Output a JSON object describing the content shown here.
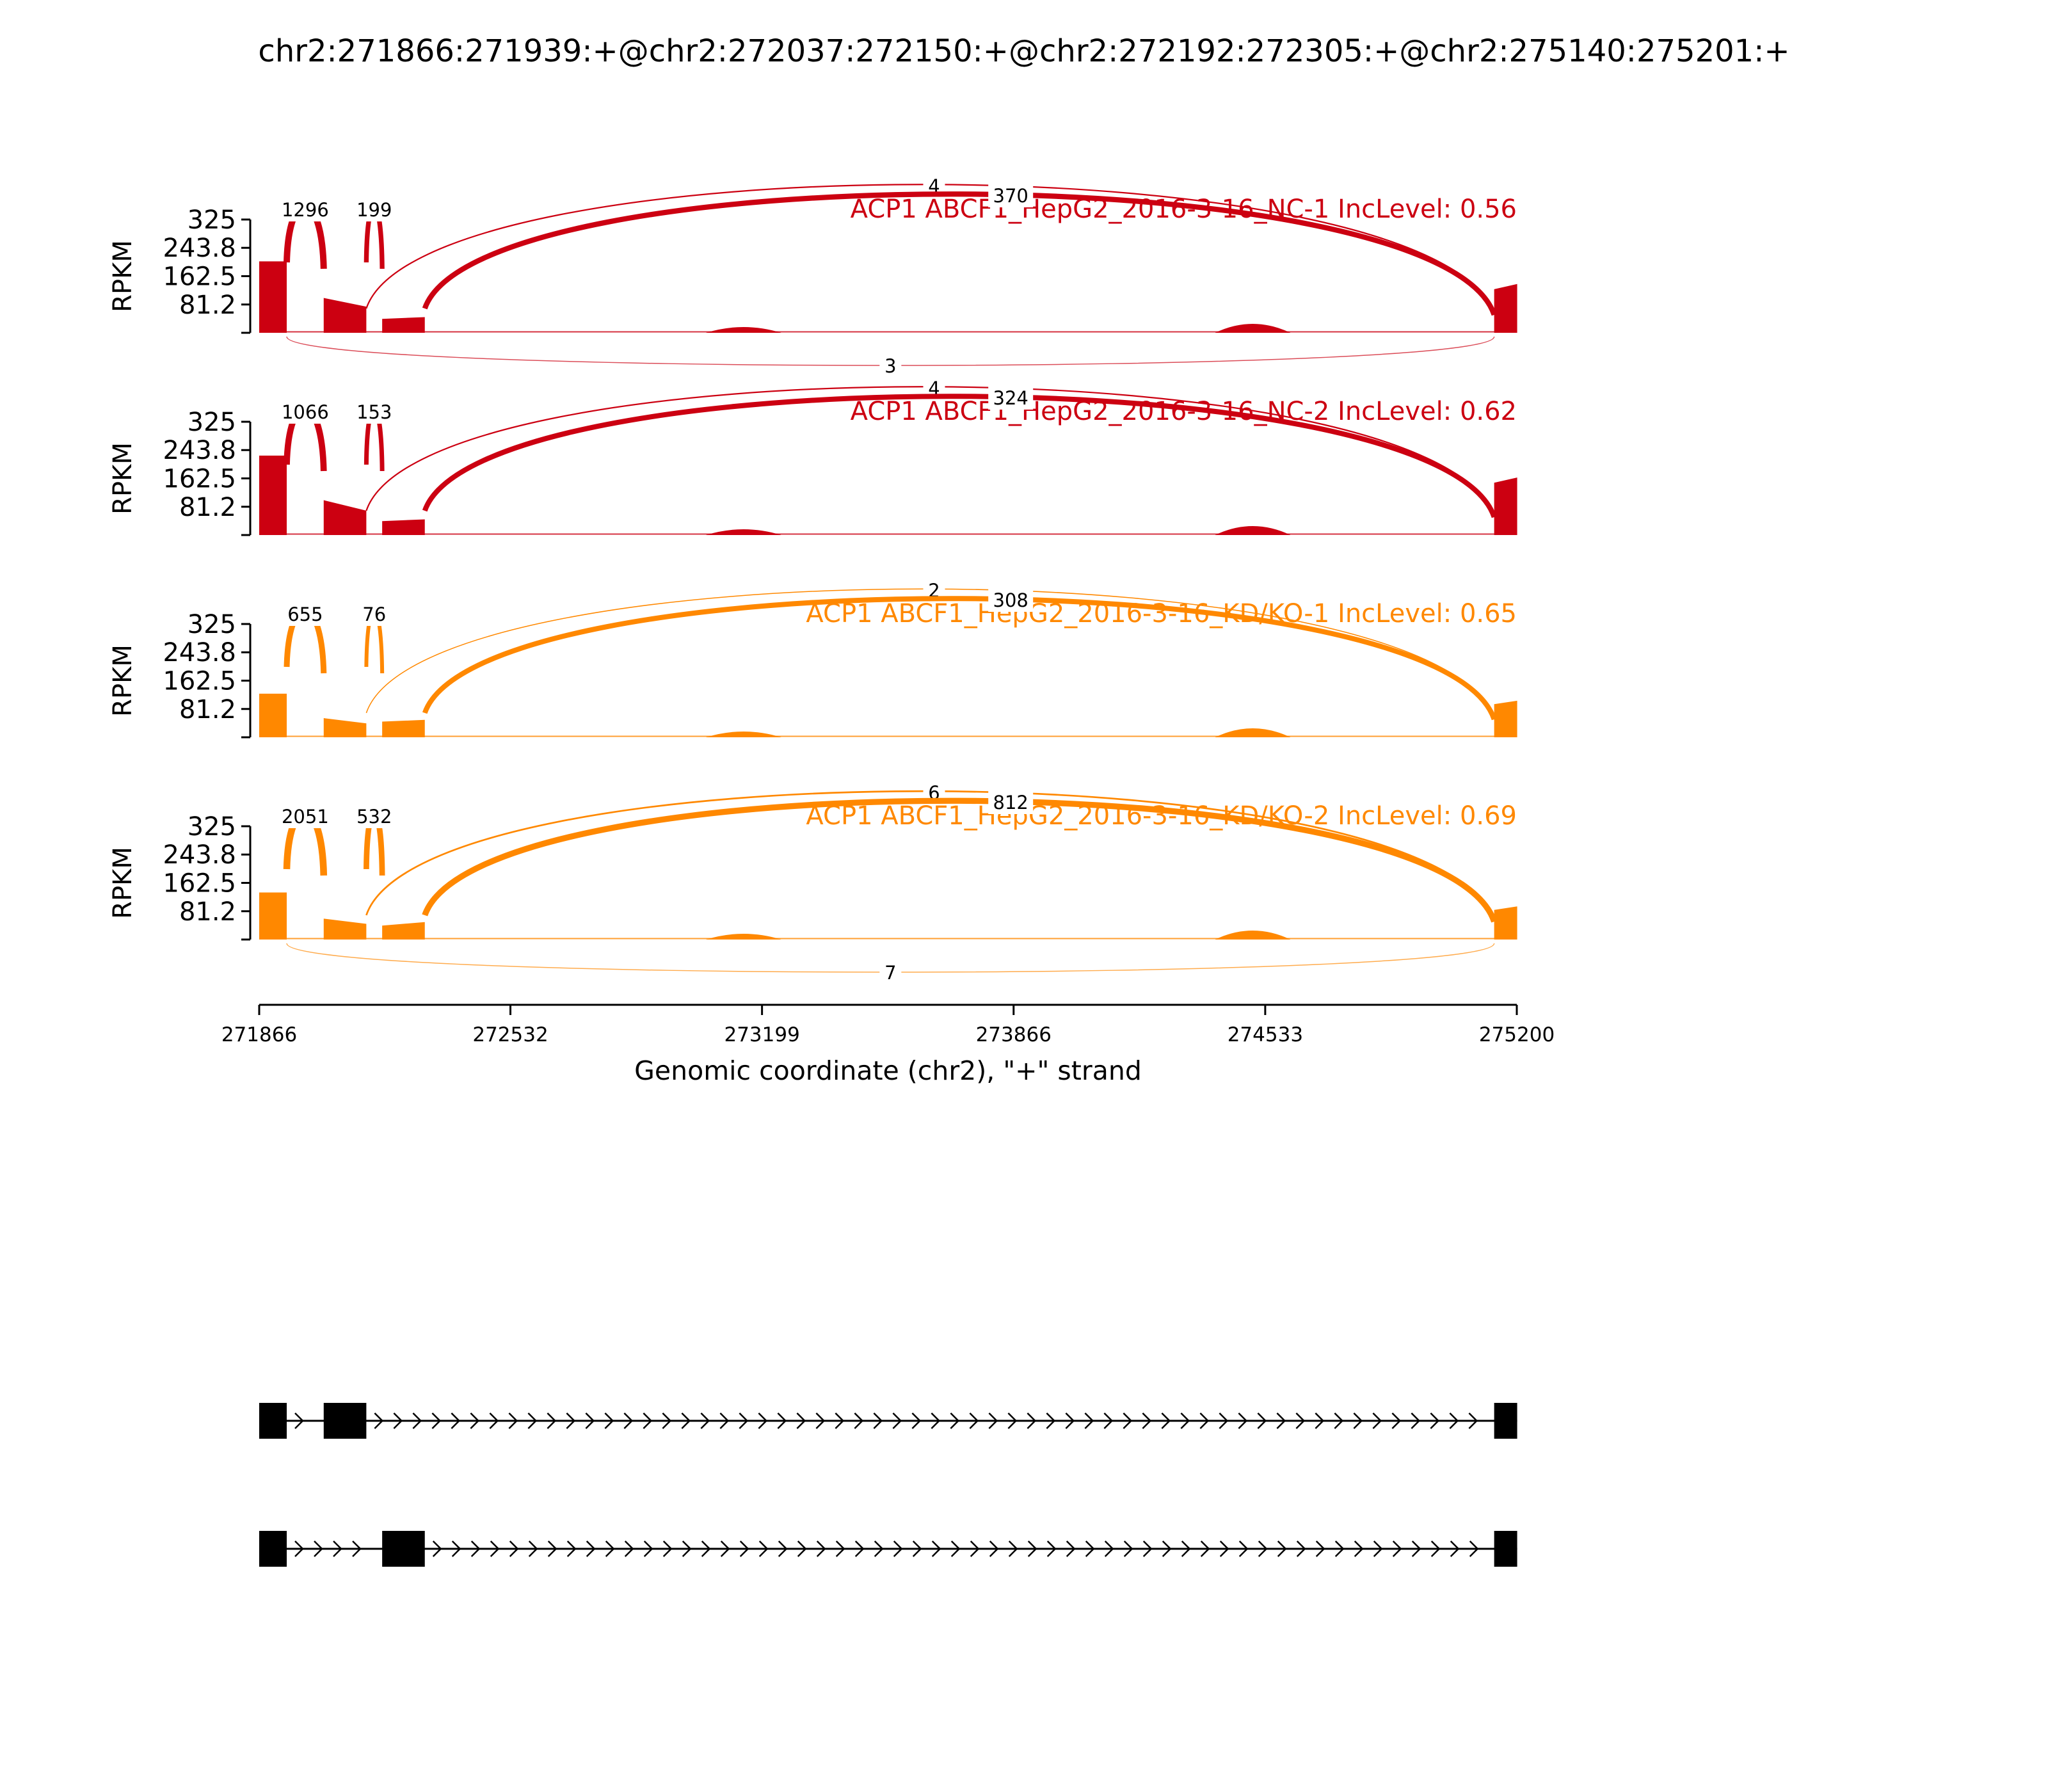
{
  "title": "chr2:271866:271939:+@chr2:272037:272150:+@chr2:272192:272305:+@chr2:275140:275201:+",
  "colors": {
    "nc": "#cc0011",
    "kd": "#ff8800",
    "axis": "#000000",
    "exon": "#000000"
  },
  "chart_data": {
    "type": "area",
    "x_range": [
      271866,
      275200
    ],
    "x_ticks": [
      "271866",
      "272532",
      "273199",
      "273866",
      "274533",
      "275200"
    ],
    "xlabel": "Genomic coordinate (chr2), \"+\" strand",
    "ylabel": "RPKM",
    "y_range": [
      0,
      325
    ],
    "y_ticks": [
      "81.2",
      "162.5",
      "243.8",
      "325"
    ],
    "exons": [
      [
        271866,
        271939
      ],
      [
        272037,
        272150
      ],
      [
        272192,
        272305
      ],
      [
        275140,
        275201
      ]
    ],
    "series": [
      {
        "name": "ACP1 ABCF1_HepG2_2016-3-16_NC-1 IncLevel: 0.56",
        "color": "#cc0011",
        "exon_coverage": [
          [
            205,
            205
          ],
          [
            100,
            75
          ],
          [
            40,
            45
          ],
          [
            125,
            140
          ]
        ],
        "junctions": [
          {
            "from": 271939,
            "to": 272037,
            "label": "1296",
            "side": "top"
          },
          {
            "from": 272150,
            "to": 272192,
            "label": "199",
            "side": "top"
          },
          {
            "from": 272150,
            "to": 275140,
            "label": "4",
            "side": "top"
          },
          {
            "from": 272305,
            "to": 275140,
            "label": "370",
            "side": "top"
          },
          {
            "from": 271939,
            "to": 275140,
            "label": "3",
            "side": "bottom"
          }
        ]
      },
      {
        "name": "ACP1 ABCF1_HepG2_2016-3-16_NC-2 IncLevel: 0.62",
        "color": "#cc0011",
        "exon_coverage": [
          [
            228,
            228
          ],
          [
            100,
            70
          ],
          [
            40,
            45
          ],
          [
            150,
            165
          ]
        ],
        "junctions": [
          {
            "from": 271939,
            "to": 272037,
            "label": "1066",
            "side": "top"
          },
          {
            "from": 272150,
            "to": 272192,
            "label": "153",
            "side": "top"
          },
          {
            "from": 272150,
            "to": 275140,
            "label": "4",
            "side": "top"
          },
          {
            "from": 272305,
            "to": 275140,
            "label": "324",
            "side": "top"
          }
        ]
      },
      {
        "name": "ACP1 ABCF1_HepG2_2016-3-16_KD/KO-1 IncLevel: 0.65",
        "color": "#ff8800",
        "exon_coverage": [
          [
            125,
            125
          ],
          [
            55,
            40
          ],
          [
            45,
            50
          ],
          [
            95,
            105
          ]
        ],
        "junctions": [
          {
            "from": 271939,
            "to": 272037,
            "label": "655",
            "side": "top"
          },
          {
            "from": 272150,
            "to": 272192,
            "label": "76",
            "side": "top"
          },
          {
            "from": 272150,
            "to": 275140,
            "label": "2",
            "side": "top"
          },
          {
            "from": 272305,
            "to": 275140,
            "label": "308",
            "side": "top"
          }
        ]
      },
      {
        "name": "ACP1 ABCF1_HepG2_2016-3-16_KD/KO-2 IncLevel: 0.69",
        "color": "#ff8800",
        "exon_coverage": [
          [
            135,
            135
          ],
          [
            60,
            45
          ],
          [
            40,
            50
          ],
          [
            85,
            95
          ]
        ],
        "junctions": [
          {
            "from": 271939,
            "to": 272037,
            "label": "2051",
            "side": "top"
          },
          {
            "from": 272150,
            "to": 272192,
            "label": "532",
            "side": "top"
          },
          {
            "from": 272150,
            "to": 275140,
            "label": "6",
            "side": "top"
          },
          {
            "from": 272305,
            "to": 275140,
            "label": "812",
            "side": "top"
          },
          {
            "from": 271939,
            "to": 275140,
            "label": "7",
            "side": "bottom"
          }
        ]
      }
    ],
    "isoforms": [
      [
        [
          271866,
          271939
        ],
        [
          272037,
          272150
        ],
        [
          275140,
          275201
        ]
      ],
      [
        [
          271866,
          271939
        ],
        [
          272192,
          272305
        ],
        [
          275140,
          275201
        ]
      ]
    ]
  }
}
